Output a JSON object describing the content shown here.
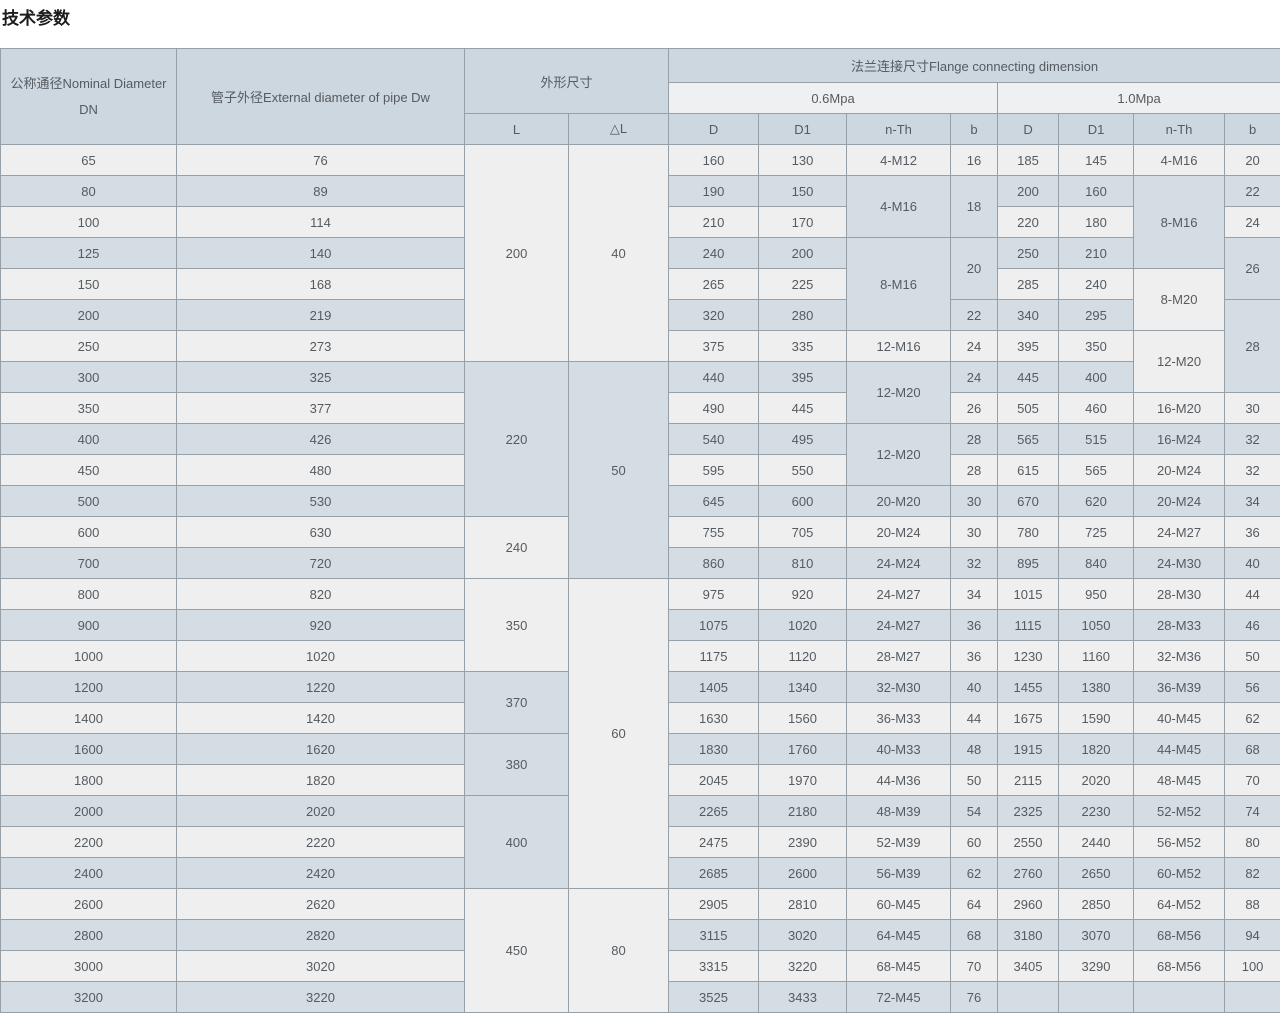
{
  "title": "技术参数",
  "colors": {
    "row_light": "#efefef",
    "row_blue": "#d4dde3",
    "header_blue": "#cdd7df",
    "header_light": "#eef0f2",
    "border": "#96a0a6",
    "text": "#555b60",
    "title_text": "#1c1c1c"
  },
  "table": {
    "headers": {
      "dn": "公称通径Nominal Diameter DN",
      "dw": "管子外径External diameter of pipe Dw",
      "dims": "外形尺寸",
      "flange": "法兰连接尺寸Flange connecting dimension",
      "p06": "0.6Mpa",
      "p10": "1.0Mpa",
      "l": "L",
      "dl": "△L",
      "d": "D",
      "d1": "D1",
      "nth": "n-Th",
      "b": "b"
    },
    "rows": [
      {
        "dn": "65",
        "dw": "76",
        "d06": "160",
        "d106": "130",
        "d10": "185",
        "d110": "145"
      },
      {
        "dn": "80",
        "dw": "89",
        "d06": "190",
        "d106": "150",
        "d10": "200",
        "d110": "160"
      },
      {
        "dn": "100",
        "dw": "114",
        "d06": "210",
        "d106": "170",
        "d10": "220",
        "d110": "180"
      },
      {
        "dn": "125",
        "dw": "140",
        "d06": "240",
        "d106": "200",
        "d10": "250",
        "d110": "210"
      },
      {
        "dn": "150",
        "dw": "168",
        "d06": "265",
        "d106": "225",
        "d10": "285",
        "d110": "240"
      },
      {
        "dn": "200",
        "dw": "219",
        "d06": "320",
        "d106": "280",
        "d10": "340",
        "d110": "295"
      },
      {
        "dn": "250",
        "dw": "273",
        "d06": "375",
        "d106": "335",
        "d10": "395",
        "d110": "350"
      },
      {
        "dn": "300",
        "dw": "325",
        "d06": "440",
        "d106": "395",
        "d10": "445",
        "d110": "400"
      },
      {
        "dn": "350",
        "dw": "377",
        "d06": "490",
        "d106": "445",
        "d10": "505",
        "d110": "460"
      },
      {
        "dn": "400",
        "dw": "426",
        "d06": "540",
        "d106": "495",
        "d10": "565",
        "d110": "515"
      },
      {
        "dn": "450",
        "dw": "480",
        "d06": "595",
        "d106": "550",
        "d10": "615",
        "d110": "565"
      },
      {
        "dn": "500",
        "dw": "530",
        "d06": "645",
        "d106": "600",
        "d10": "670",
        "d110": "620"
      },
      {
        "dn": "600",
        "dw": "630",
        "d06": "755",
        "d106": "705",
        "d10": "780",
        "d110": "725"
      },
      {
        "dn": "700",
        "dw": "720",
        "d06": "860",
        "d106": "810",
        "d10": "895",
        "d110": "840"
      },
      {
        "dn": "800",
        "dw": "820",
        "d06": "975",
        "d106": "920",
        "d10": "1015",
        "d110": "950"
      },
      {
        "dn": "900",
        "dw": "920",
        "d06": "1075",
        "d106": "1020",
        "d10": "1115",
        "d110": "1050"
      },
      {
        "dn": "1000",
        "dw": "1020",
        "d06": "1175",
        "d106": "1120",
        "d10": "1230",
        "d110": "1160"
      },
      {
        "dn": "1200",
        "dw": "1220",
        "d06": "1405",
        "d106": "1340",
        "d10": "1455",
        "d110": "1380"
      },
      {
        "dn": "1400",
        "dw": "1420",
        "d06": "1630",
        "d106": "1560",
        "d10": "1675",
        "d110": "1590"
      },
      {
        "dn": "1600",
        "dw": "1620",
        "d06": "1830",
        "d106": "1760",
        "d10": "1915",
        "d110": "1820"
      },
      {
        "dn": "1800",
        "dw": "1820",
        "d06": "2045",
        "d106": "1970",
        "d10": "2115",
        "d110": "2020"
      },
      {
        "dn": "2000",
        "dw": "2020",
        "d06": "2265",
        "d106": "2180",
        "d10": "2325",
        "d110": "2230"
      },
      {
        "dn": "2200",
        "dw": "2220",
        "d06": "2475",
        "d106": "2390",
        "d10": "2550",
        "d110": "2440"
      },
      {
        "dn": "2400",
        "dw": "2420",
        "d06": "2685",
        "d106": "2600",
        "d10": "2760",
        "d110": "2650"
      },
      {
        "dn": "2600",
        "dw": "2620",
        "d06": "2905",
        "d106": "2810",
        "d10": "2960",
        "d110": "2850"
      },
      {
        "dn": "2800",
        "dw": "2820",
        "d06": "3115",
        "d106": "3020",
        "d10": "3180",
        "d110": "3070"
      },
      {
        "dn": "3000",
        "dw": "3020",
        "d06": "3315",
        "d106": "3220",
        "d10": "3405",
        "d110": "3290"
      },
      {
        "dn": "3200",
        "dw": "3220",
        "d06": "3525",
        "d106": "3433",
        "d10": "",
        "d110": ""
      }
    ],
    "l_col": [
      {
        "v": "200",
        "n": 7
      },
      {
        "v": "220",
        "n": 5
      },
      {
        "v": "240",
        "n": 2
      },
      {
        "v": "350",
        "n": 3
      },
      {
        "v": "370",
        "n": 2
      },
      {
        "v": "380",
        "n": 2
      },
      {
        "v": "400",
        "n": 3
      },
      {
        "v": "450",
        "n": 4
      }
    ],
    "dl_col": [
      {
        "v": "40",
        "n": 7
      },
      {
        "v": "50",
        "n": 7
      },
      {
        "v": "60",
        "n": 10
      },
      {
        "v": "80",
        "n": 4
      }
    ],
    "nth06_col": [
      {
        "v": "4-M12",
        "n": 1
      },
      {
        "v": "4-M16",
        "n": 2
      },
      {
        "v": "8-M16",
        "n": 3
      },
      {
        "v": "12-M16",
        "n": 1
      },
      {
        "v": "12-M20",
        "n": 2
      },
      {
        "v": "12-M20",
        "n": 2
      },
      {
        "v": "20-M20",
        "n": 1
      },
      {
        "v": "20-M24",
        "n": 1
      },
      {
        "v": "24-M24",
        "n": 1
      },
      {
        "v": "24-M27",
        "n": 1
      },
      {
        "v": "24-M27",
        "n": 1
      },
      {
        "v": "28-M27",
        "n": 1
      },
      {
        "v": "32-M30",
        "n": 1
      },
      {
        "v": "36-M33",
        "n": 1
      },
      {
        "v": "40-M33",
        "n": 1
      },
      {
        "v": "44-M36",
        "n": 1
      },
      {
        "v": "48-M39",
        "n": 1
      },
      {
        "v": "52-M39",
        "n": 1
      },
      {
        "v": "56-M39",
        "n": 1
      },
      {
        "v": "60-M45",
        "n": 1
      },
      {
        "v": "64-M45",
        "n": 1
      },
      {
        "v": "68-M45",
        "n": 1
      },
      {
        "v": "72-M45",
        "n": 1
      }
    ],
    "b06_col": [
      {
        "v": "16",
        "n": 1
      },
      {
        "v": "18",
        "n": 2
      },
      {
        "v": "20",
        "n": 2
      },
      {
        "v": "22",
        "n": 1
      },
      {
        "v": "24",
        "n": 1
      },
      {
        "v": "24",
        "n": 1
      },
      {
        "v": "26",
        "n": 1
      },
      {
        "v": "28",
        "n": 1
      },
      {
        "v": "28",
        "n": 1
      },
      {
        "v": "30",
        "n": 1
      },
      {
        "v": "30",
        "n": 1
      },
      {
        "v": "32",
        "n": 1
      },
      {
        "v": "34",
        "n": 1
      },
      {
        "v": "36",
        "n": 1
      },
      {
        "v": "36",
        "n": 1
      },
      {
        "v": "40",
        "n": 1
      },
      {
        "v": "44",
        "n": 1
      },
      {
        "v": "48",
        "n": 1
      },
      {
        "v": "50",
        "n": 1
      },
      {
        "v": "54",
        "n": 1
      },
      {
        "v": "60",
        "n": 1
      },
      {
        "v": "62",
        "n": 1
      },
      {
        "v": "64",
        "n": 1
      },
      {
        "v": "68",
        "n": 1
      },
      {
        "v": "70",
        "n": 1
      },
      {
        "v": "76",
        "n": 1
      }
    ],
    "nth10_col": [
      {
        "v": "4-M16",
        "n": 1
      },
      {
        "v": "8-M16",
        "n": 3
      },
      {
        "v": "8-M20",
        "n": 2
      },
      {
        "v": "12-M20",
        "n": 2
      },
      {
        "v": "16-M20",
        "n": 1
      },
      {
        "v": "16-M24",
        "n": 1
      },
      {
        "v": "20-M24",
        "n": 1
      },
      {
        "v": "20-M24",
        "n": 1
      },
      {
        "v": "24-M27",
        "n": 1
      },
      {
        "v": "24-M30",
        "n": 1
      },
      {
        "v": "28-M30",
        "n": 1
      },
      {
        "v": "28-M33",
        "n": 1
      },
      {
        "v": "32-M36",
        "n": 1
      },
      {
        "v": "36-M39",
        "n": 1
      },
      {
        "v": "40-M45",
        "n": 1
      },
      {
        "v": "44-M45",
        "n": 1
      },
      {
        "v": "48-M45",
        "n": 1
      },
      {
        "v": "52-M52",
        "n": 1
      },
      {
        "v": "56-M52",
        "n": 1
      },
      {
        "v": "60-M52",
        "n": 1
      },
      {
        "v": "64-M52",
        "n": 1
      },
      {
        "v": "68-M56",
        "n": 1
      },
      {
        "v": "68-M56",
        "n": 1
      },
      {
        "v": "",
        "n": 1
      }
    ],
    "b10_col": [
      {
        "v": "20",
        "n": 1
      },
      {
        "v": "22",
        "n": 1
      },
      {
        "v": "24",
        "n": 1
      },
      {
        "v": "26",
        "n": 2
      },
      {
        "v": "28",
        "n": 3
      },
      {
        "v": "30",
        "n": 1
      },
      {
        "v": "32",
        "n": 1
      },
      {
        "v": "32",
        "n": 1
      },
      {
        "v": "34",
        "n": 1
      },
      {
        "v": "36",
        "n": 1
      },
      {
        "v": "40",
        "n": 1
      },
      {
        "v": "44",
        "n": 1
      },
      {
        "v": "46",
        "n": 1
      },
      {
        "v": "50",
        "n": 1
      },
      {
        "v": "56",
        "n": 1
      },
      {
        "v": "62",
        "n": 1
      },
      {
        "v": "68",
        "n": 1
      },
      {
        "v": "70",
        "n": 1
      },
      {
        "v": "74",
        "n": 1
      },
      {
        "v": "80",
        "n": 1
      },
      {
        "v": "82",
        "n": 1
      },
      {
        "v": "88",
        "n": 1
      },
      {
        "v": "94",
        "n": 1
      },
      {
        "v": "100",
        "n": 1
      },
      {
        "v": "",
        "n": 1
      }
    ]
  }
}
